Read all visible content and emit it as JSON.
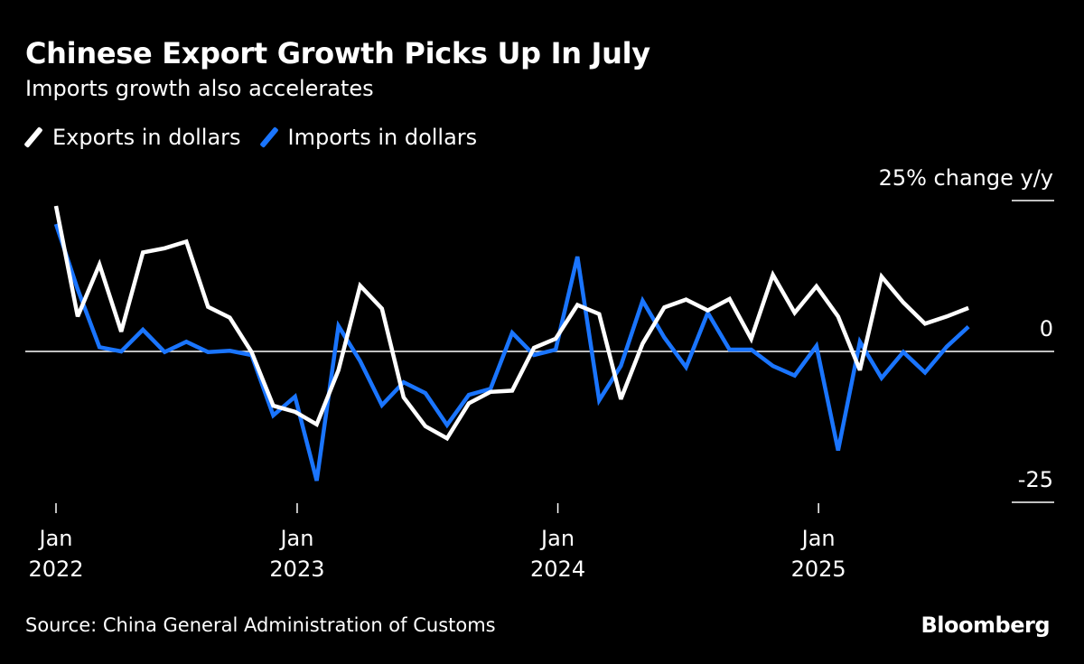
{
  "title": "Chinese Export Growth Picks Up In July",
  "subtitle": "Imports growth also accelerates",
  "source": "Source: China General Administration of Customs",
  "logo": "Bloomberg",
  "chart_data": {
    "type": "line",
    "title": "Chinese Export Growth Picks Up In July",
    "subtitle": "Imports growth also accelerates",
    "ylabel": "25% change y/y",
    "ylim": [
      -25,
      25
    ],
    "yticks": [
      {
        "value": 25,
        "label": "25% change y/y"
      },
      {
        "value": 0,
        "label": "0"
      },
      {
        "value": -25,
        "label": "-25"
      }
    ],
    "xticks": [
      {
        "month": "Jan",
        "year": "2022"
      },
      {
        "month": "Jan",
        "year": "2023"
      },
      {
        "month": "Jan",
        "year": "2024"
      },
      {
        "month": "Jan",
        "year": "2025"
      }
    ],
    "x_start": "Jan 2022",
    "x_end": "Jul 2025",
    "legend_position": "top-left",
    "grid": false,
    "series": [
      {
        "name": "Exports in dollars",
        "color": "#ffffff",
        "values": [
          24.1,
          5.8,
          14.4,
          3.3,
          16.4,
          17.1,
          18.2,
          7.4,
          5.6,
          -0.1,
          -9.0,
          -10.0,
          -12.1,
          -3.1,
          10.9,
          7.1,
          -7.6,
          -12.4,
          -14.4,
          -8.6,
          -6.7,
          -6.5,
          0.6,
          2.1,
          7.7,
          6.2,
          -7.9,
          1.3,
          7.3,
          8.6,
          6.8,
          8.7,
          2.1,
          12.7,
          6.4,
          10.8,
          5.8,
          -3.1,
          12.4,
          8.1,
          4.6,
          5.8,
          7.2
        ]
      },
      {
        "name": "Imports in dollars",
        "color": "#1a75ff",
        "values": [
          21.1,
          10.3,
          0.7,
          0.0,
          3.6,
          -0.1,
          1.6,
          -0.1,
          0.1,
          -0.6,
          -10.6,
          -7.5,
          -21.4,
          4.2,
          -1.6,
          -8.9,
          -5.1,
          -6.9,
          -12.2,
          -7.2,
          -6.2,
          3.1,
          -0.6,
          0.3,
          15.7,
          -8.1,
          -2.4,
          8.4,
          2.3,
          -2.6,
          6.4,
          0.3,
          0.3,
          -2.4,
          -4.0,
          0.9,
          -16.4,
          1.6,
          -4.4,
          -0.1,
          -3.5,
          0.8,
          4.1
        ]
      }
    ]
  }
}
